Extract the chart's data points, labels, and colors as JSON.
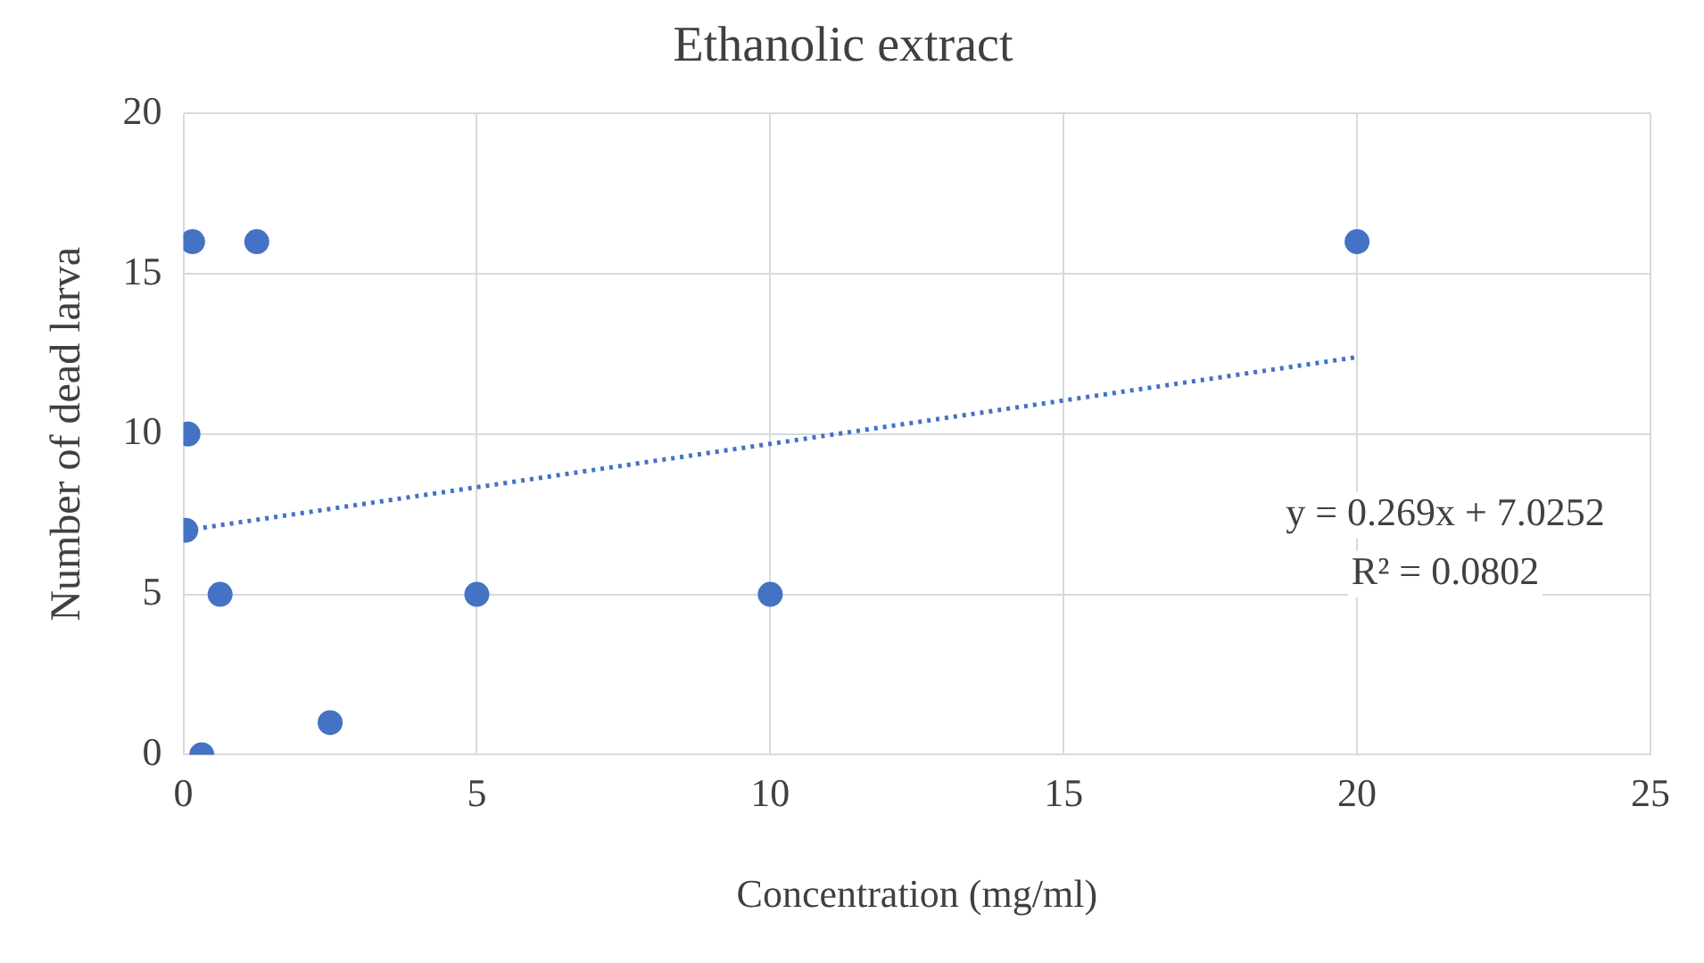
{
  "chart_data": {
    "type": "scatter",
    "title": "Ethanolic extract",
    "xlabel": "Concentration (mg/ml)",
    "ylabel": "Number of dead larva",
    "x": [
      0.039,
      0.078,
      0.156,
      0.3125,
      0.625,
      1.25,
      2.5,
      5,
      10,
      20
    ],
    "series": [
      {
        "color": "#4472c4",
        "values": [
          7,
          10,
          16,
          0,
          5,
          16,
          1,
          5,
          5,
          16
        ],
        "marker": "circle"
      },
      {
        "type": "line",
        "color": "#4472c4",
        "x": [
          0.039,
          20
        ],
        "values": [
          7.0,
          12.4
        ],
        "line_style": "dotted",
        "marker": "none"
      }
    ],
    "xlim": [
      0,
      25
    ],
    "xticks": [
      0,
      5,
      10,
      15,
      20,
      25
    ],
    "ylim": [
      0,
      20
    ],
    "yticks": [
      0,
      5,
      10,
      15,
      20
    ],
    "grid": true,
    "legend": false,
    "annotations": [
      "y = 0.269x + 7.0252",
      "R² = 0.0802"
    ]
  }
}
